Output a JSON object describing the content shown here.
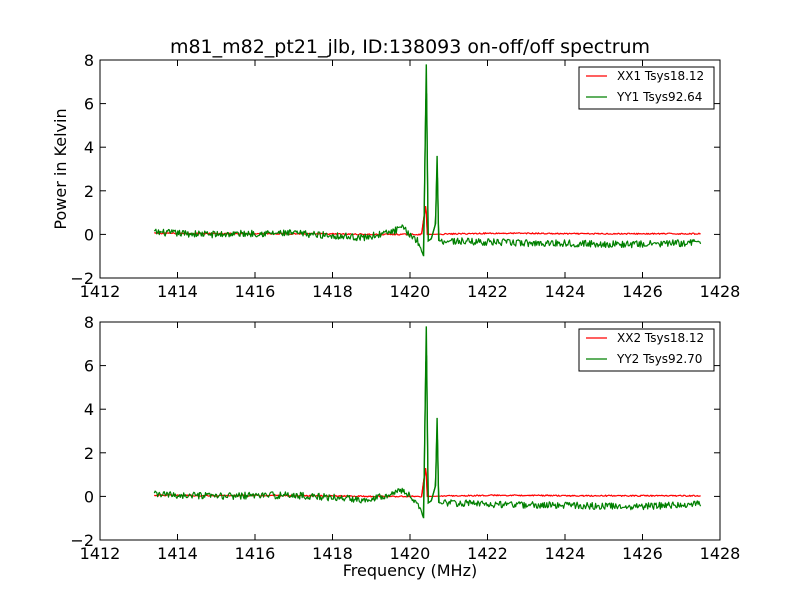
{
  "title": "m81_m82_pt21_jlb, ID:138093 on-off/off spectrum",
  "colors": {
    "xx": "#ff0000",
    "yy": "#008000",
    "axes": "#000000",
    "background": "#ffffff"
  },
  "chart_data": [
    {
      "type": "line",
      "title": "m81_m82_pt21_jlb, ID:138093 on-off/off spectrum",
      "xlabel": "",
      "ylabel": "Power in Kelvin",
      "xlim": [
        1412,
        1428
      ],
      "ylim": [
        -2,
        8
      ],
      "xticks": [
        "1412",
        "1414",
        "1416",
        "1418",
        "1420",
        "1422",
        "1424",
        "1426",
        "1428"
      ],
      "yticks": [
        "−2",
        "0",
        "2",
        "4",
        "6",
        "8"
      ],
      "grid": false,
      "legend_position": "top-right",
      "series": [
        {
          "name": "XX1 Tsys18.12",
          "color": "#ff0000",
          "x": [
            1413.4,
            1414.0,
            1415.0,
            1416.0,
            1417.0,
            1418.0,
            1419.0,
            1420.0,
            1420.3,
            1420.4,
            1420.42,
            1420.45,
            1420.5,
            1421.0,
            1422.0,
            1423.0,
            1424.0,
            1425.0,
            1426.0,
            1427.0,
            1427.5
          ],
          "y": [
            0.05,
            0.05,
            0.03,
            0.04,
            0.03,
            0.02,
            0.0,
            0.0,
            0.0,
            1.3,
            1.0,
            0.0,
            0.0,
            0.02,
            0.05,
            0.05,
            0.03,
            0.03,
            0.03,
            0.03,
            0.03
          ]
        },
        {
          "name": "YY1 Tsys92.64",
          "color": "#008000",
          "x": [
            1413.4,
            1414.0,
            1415.0,
            1416.0,
            1417.0,
            1418.0,
            1418.8,
            1419.5,
            1419.8,
            1420.2,
            1420.35,
            1420.42,
            1420.47,
            1420.55,
            1420.66,
            1420.7,
            1420.74,
            1421.0,
            1422.0,
            1423.0,
            1424.0,
            1425.0,
            1426.0,
            1427.0,
            1427.5
          ],
          "y": [
            0.1,
            0.05,
            0.0,
            0.05,
            0.05,
            -0.05,
            -0.15,
            0.1,
            0.3,
            -0.3,
            -1.0,
            7.8,
            -0.3,
            -0.2,
            0.5,
            3.6,
            -0.3,
            -0.3,
            -0.35,
            -0.4,
            -0.4,
            -0.45,
            -0.45,
            -0.4,
            -0.35
          ]
        }
      ]
    },
    {
      "type": "line",
      "title": "",
      "xlabel": "Frequency (MHz)",
      "ylabel": "",
      "xlim": [
        1412,
        1428
      ],
      "ylim": [
        -2,
        8
      ],
      "xticks": [
        "1412",
        "1414",
        "1416",
        "1418",
        "1420",
        "1422",
        "1424",
        "1426",
        "1428"
      ],
      "yticks": [
        "−2",
        "0",
        "2",
        "4",
        "6",
        "8"
      ],
      "grid": false,
      "legend_position": "top-right",
      "series": [
        {
          "name": "XX2 Tsys18.12",
          "color": "#ff0000",
          "x": [
            1413.4,
            1414.0,
            1415.0,
            1416.0,
            1417.0,
            1418.0,
            1419.0,
            1420.0,
            1420.3,
            1420.4,
            1420.42,
            1420.45,
            1420.5,
            1421.0,
            1422.0,
            1423.0,
            1424.0,
            1425.0,
            1426.0,
            1427.0,
            1427.5
          ],
          "y": [
            0.05,
            0.05,
            0.03,
            0.04,
            0.03,
            0.02,
            0.0,
            0.0,
            0.0,
            1.3,
            1.0,
            0.0,
            0.0,
            0.02,
            0.05,
            0.05,
            0.03,
            0.03,
            0.03,
            0.03,
            0.03
          ]
        },
        {
          "name": "YY2 Tsys92.70",
          "color": "#008000",
          "x": [
            1413.4,
            1414.0,
            1415.0,
            1416.0,
            1417.0,
            1418.0,
            1418.8,
            1419.5,
            1419.8,
            1420.2,
            1420.35,
            1420.42,
            1420.47,
            1420.55,
            1420.66,
            1420.7,
            1420.74,
            1421.0,
            1422.0,
            1423.0,
            1424.0,
            1425.0,
            1426.0,
            1427.0,
            1427.5
          ],
          "y": [
            0.1,
            0.05,
            0.0,
            0.05,
            0.05,
            -0.05,
            -0.15,
            0.1,
            0.3,
            -0.3,
            -1.0,
            7.8,
            -0.3,
            -0.2,
            0.5,
            3.6,
            -0.3,
            -0.3,
            -0.35,
            -0.4,
            -0.4,
            -0.45,
            -0.45,
            -0.4,
            -0.35
          ]
        }
      ]
    }
  ]
}
